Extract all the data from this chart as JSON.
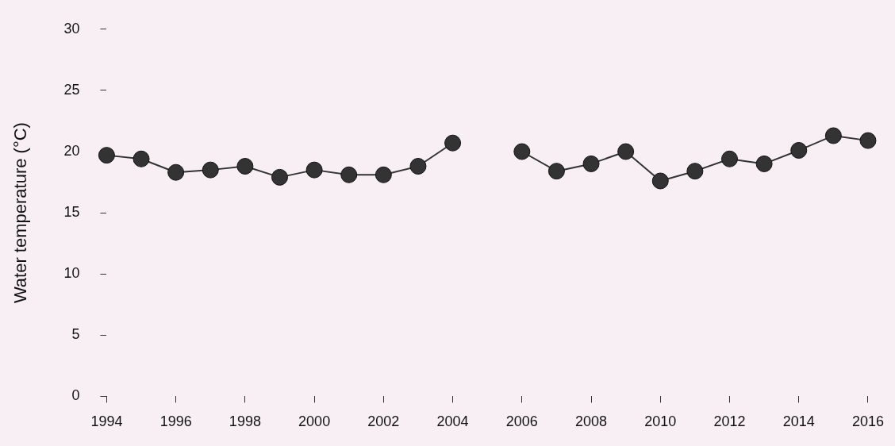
{
  "chart_data": {
    "type": "line",
    "ylabel": "Water temperature (°C)",
    "x": [
      1994,
      1995,
      1996,
      1997,
      1998,
      1999,
      2000,
      2001,
      2002,
      2003,
      2004,
      2005,
      2006,
      2007,
      2008,
      2009,
      2010,
      2011,
      2012,
      2013,
      2014,
      2015,
      2016
    ],
    "series": [
      {
        "color": "#333333",
        "values": [
          19.7,
          19.4,
          18.3,
          18.5,
          18.8,
          17.9,
          18.5,
          18.1,
          18.1,
          18.8,
          20.7,
          null,
          20.0,
          18.4,
          19.0,
          20.0,
          17.6,
          18.4,
          19.4,
          19.0,
          20.1,
          21.3,
          20.9
        ]
      }
    ],
    "xlim": [
      1994,
      2016
    ],
    "xticks": [
      1994,
      1996,
      1998,
      2000,
      2002,
      2004,
      2006,
      2008,
      2010,
      2012,
      2014,
      2016
    ],
    "ylim": [
      0,
      30
    ],
    "yticks": [
      0,
      5,
      10,
      15,
      20,
      25,
      30
    ],
    "grid": false,
    "legend": false,
    "marker": "circle",
    "line_style": "solid"
  }
}
